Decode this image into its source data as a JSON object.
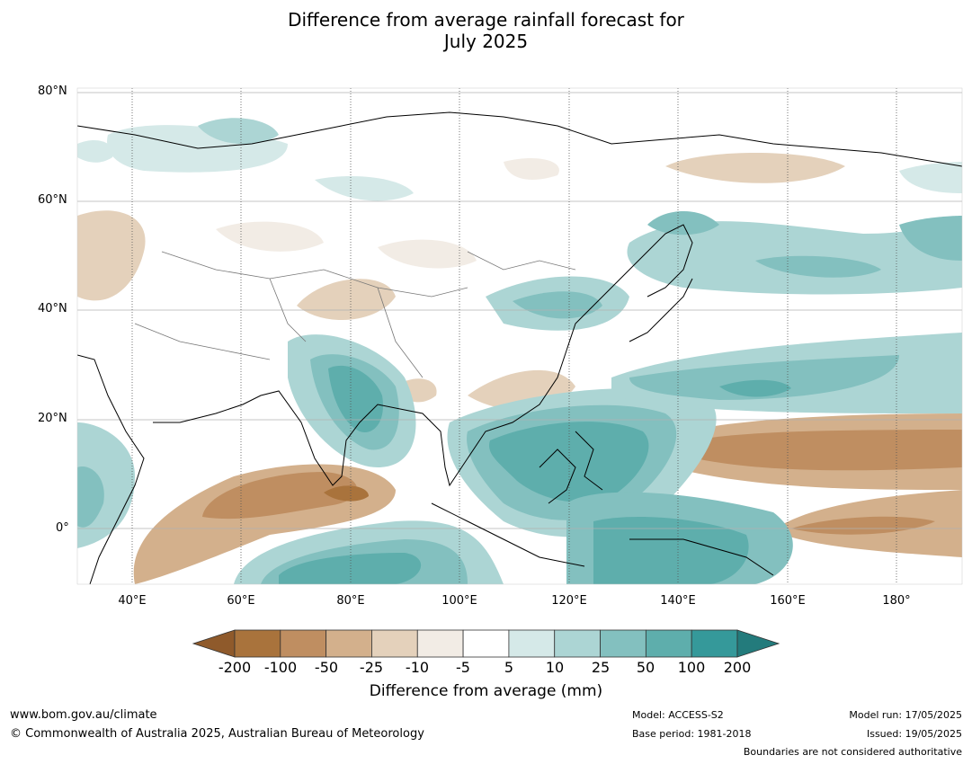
{
  "title": {
    "line1": "Difference from average rainfall forecast for",
    "line2": "July 2025"
  },
  "map": {
    "lat_labels": [
      "80°N",
      "60°N",
      "40°N",
      "20°N",
      "0°"
    ],
    "lon_labels": [
      "40°E",
      "60°E",
      "80°E",
      "100°E",
      "120°E",
      "140°E",
      "160°E",
      "180°"
    ],
    "lon_range": [
      30,
      192
    ],
    "lat_range": [
      -10,
      80
    ],
    "gridlines": true
  },
  "colorbar": {
    "title": "Difference from average (mm)",
    "labels": [
      "-200",
      "-100",
      "-50",
      "-25",
      "-10",
      "-5",
      "5",
      "10",
      "25",
      "50",
      "100",
      "200"
    ],
    "colors": [
      "#8f5a2b",
      "#a9733c",
      "#bf8e61",
      "#d3b08c",
      "#e4d1bb",
      "#f2ece5",
      "#ffffff",
      "#d5e9e8",
      "#acd5d4",
      "#83c0bf",
      "#5eaeac",
      "#35999a",
      "#237b7c"
    ]
  },
  "footer": {
    "website": "www.bom.gov.au/climate",
    "copyright": "© Commonwealth of Australia 2025, Australian Bureau of Meteorology",
    "model": "Model: ACCESS-S2",
    "base_period": "Base period: 1981-2018",
    "model_run": "Model run: 17/05/2025",
    "issued": "Issued: 19/05/2025",
    "disclaimer": "Boundaries are not considered authoritative"
  }
}
